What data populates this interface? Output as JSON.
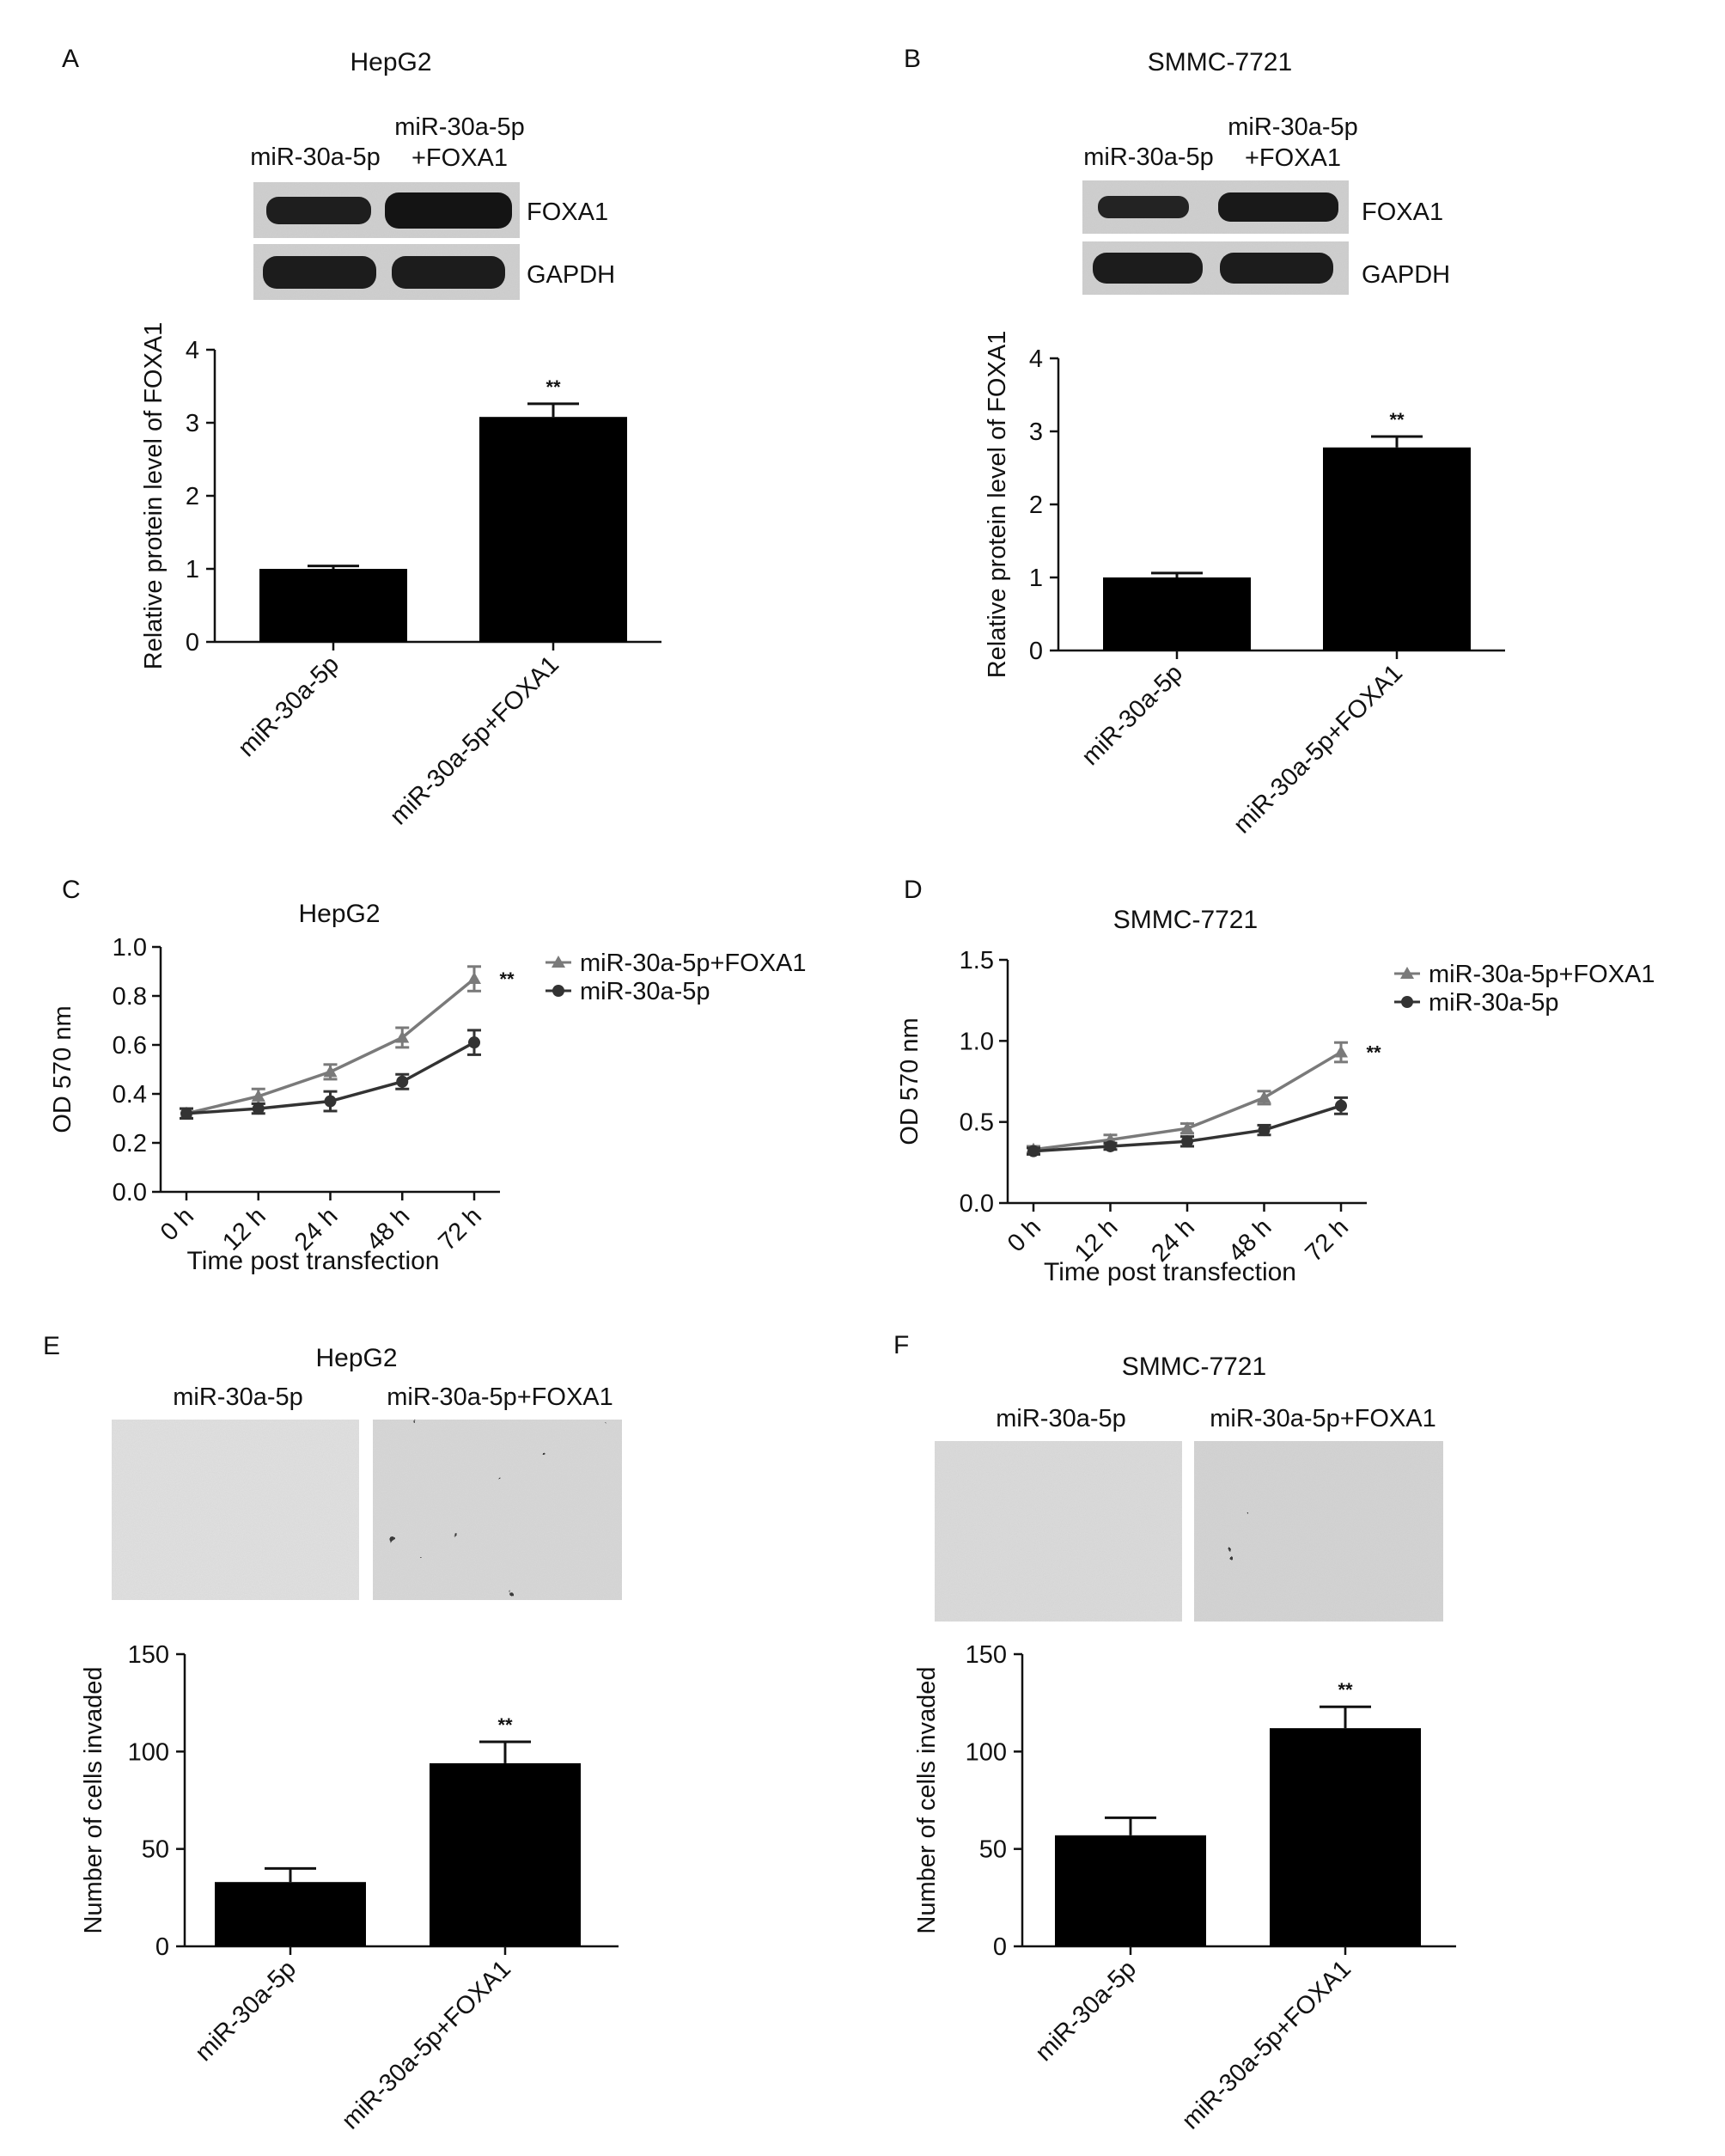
{
  "panels": [
    {
      "letter": "A",
      "title": "HepG2",
      "blot": {
        "lane_labels": [
          [
            "miR-30a-5p"
          ],
          [
            "miR-30a-5p",
            "+FOXA1"
          ]
        ],
        "rows": [
          {
            "label": "FOXA1",
            "intensity": [
              0.82,
              1.0
            ]
          },
          {
            "label": "GAPDH",
            "intensity": [
              0.95,
              0.95
            ]
          }
        ]
      }
    },
    {
      "letter": "B",
      "title": "SMMC-7721",
      "blot": {
        "lane_labels": [
          [
            "miR-30a-5p"
          ],
          [
            "miR-30a-5p",
            "+FOXA1"
          ]
        ],
        "rows": [
          {
            "label": "FOXA1",
            "intensity": [
              0.75,
              0.95
            ]
          },
          {
            "label": "GAPDH",
            "intensity": [
              0.95,
              0.95
            ]
          }
        ]
      }
    },
    {
      "letter": "C",
      "title": "HepG2"
    },
    {
      "letter": "D",
      "title": "SMMC-7721"
    },
    {
      "letter": "E",
      "title": "HepG2",
      "micrograph_labels": [
        "miR-30a-5p",
        "miR-30a-5p+FOXA1"
      ]
    },
    {
      "letter": "F",
      "title": "SMMC-7721",
      "micrograph_labels": [
        "miR-30a-5p",
        "miR-30a-5p+FOXA1"
      ]
    }
  ],
  "chart_data": [
    {
      "id": "A",
      "type": "bar",
      "categories": [
        "miR-30a-5p",
        "miR-30a-5p+FOXA1"
      ],
      "values": [
        1.0,
        3.08
      ],
      "errors": [
        0.04,
        0.18
      ],
      "significance": [
        "",
        "**"
      ],
      "ylabel": "Relative protein level of FOXA1",
      "ylim": [
        0,
        4
      ],
      "yticks": [
        "0",
        "1",
        "2",
        "3",
        "4"
      ],
      "bar_color": "#000000"
    },
    {
      "id": "B",
      "type": "bar",
      "categories": [
        "miR-30a-5p",
        "miR-30a-5p+FOXA1"
      ],
      "values": [
        1.0,
        2.78
      ],
      "errors": [
        0.06,
        0.15
      ],
      "significance": [
        "",
        "**"
      ],
      "ylabel": "Relative protein level of FOXA1",
      "ylim": [
        0,
        4
      ],
      "yticks": [
        "0",
        "1",
        "2",
        "3",
        "4"
      ],
      "bar_color": "#000000"
    },
    {
      "id": "C",
      "type": "line",
      "x": [
        "0 h",
        "12 h",
        "24 h",
        "48 h",
        "72 h"
      ],
      "series": [
        {
          "name": "miR-30a-5p+FOXA1",
          "values": [
            0.32,
            0.39,
            0.49,
            0.63,
            0.87
          ],
          "errors": [
            0.02,
            0.03,
            0.03,
            0.04,
            0.05
          ],
          "color": "#7a7a7a",
          "marker": "triangle"
        },
        {
          "name": "miR-30a-5p",
          "values": [
            0.32,
            0.34,
            0.37,
            0.45,
            0.61
          ],
          "errors": [
            0.02,
            0.02,
            0.04,
            0.03,
            0.05
          ],
          "color": "#333333",
          "marker": "circle"
        }
      ],
      "significance": "**",
      "xlabel": "Time post transfection",
      "ylabel": "OD 570 nm",
      "ylim": [
        0,
        1.0
      ],
      "yticks": [
        "0.0",
        "0.2",
        "0.4",
        "0.6",
        "0.8",
        "1.0"
      ],
      "legend": "right"
    },
    {
      "id": "D",
      "type": "line",
      "x": [
        "0 h",
        "12 h",
        "24 h",
        "48 h",
        "72 h"
      ],
      "series": [
        {
          "name": "miR-30a-5p+FOXA1",
          "values": [
            0.33,
            0.39,
            0.46,
            0.65,
            0.93
          ],
          "errors": [
            0.02,
            0.03,
            0.03,
            0.04,
            0.06
          ],
          "color": "#7a7a7a",
          "marker": "triangle"
        },
        {
          "name": "miR-30a-5p",
          "values": [
            0.32,
            0.35,
            0.38,
            0.45,
            0.6
          ],
          "errors": [
            0.02,
            0.02,
            0.03,
            0.03,
            0.05
          ],
          "color": "#333333",
          "marker": "circle"
        }
      ],
      "significance": "**",
      "xlabel": "Time post transfection",
      "ylabel": "OD 570 nm",
      "ylim": [
        0,
        1.5
      ],
      "yticks": [
        "0.0",
        "0.5",
        "1.0",
        "1.5"
      ],
      "legend": "right"
    },
    {
      "id": "E",
      "type": "bar",
      "categories": [
        "miR-30a-5p",
        "miR-30a-5p+FOXA1"
      ],
      "values": [
        33,
        94
      ],
      "errors": [
        7,
        11
      ],
      "significance": [
        "",
        "**"
      ],
      "ylabel": "Number of cells invaded",
      "ylim": [
        0,
        150
      ],
      "yticks": [
        "0",
        "50",
        "100",
        "150"
      ],
      "bar_color": "#000000"
    },
    {
      "id": "F",
      "type": "bar",
      "categories": [
        "miR-30a-5p",
        "miR-30a-5p+FOXA1"
      ],
      "values": [
        57,
        112
      ],
      "errors": [
        9,
        11
      ],
      "significance": [
        "",
        "**"
      ],
      "ylabel": "Number of cells invaded",
      "ylim": [
        0,
        150
      ],
      "yticks": [
        "0",
        "50",
        "100",
        "150"
      ],
      "bar_color": "#000000"
    }
  ]
}
